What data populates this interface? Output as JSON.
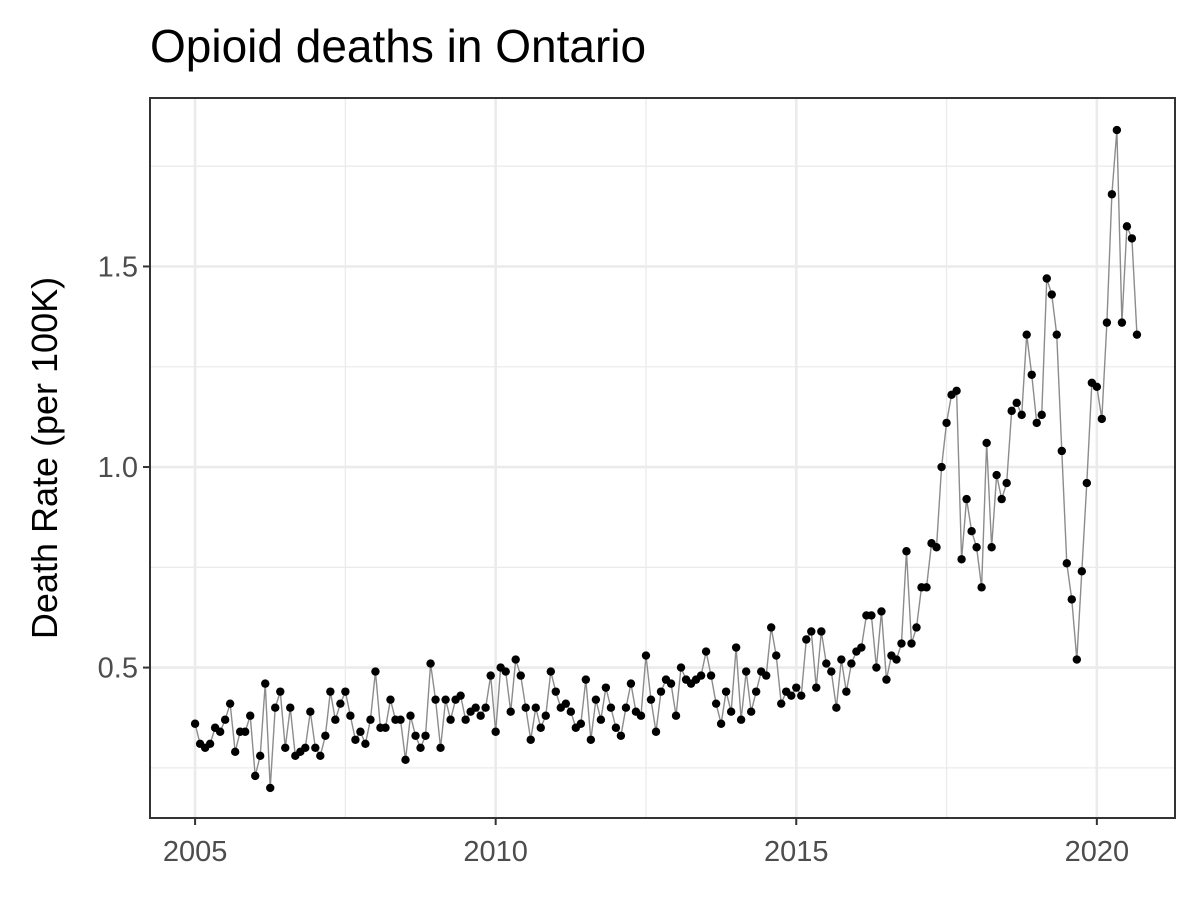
{
  "chart_data": {
    "type": "line",
    "title": "Opioid deaths in Ontario",
    "xlabel": "",
    "ylabel": "Death Rate (per 100K)",
    "xlim": [
      2004.25,
      2021.3
    ],
    "ylim": [
      0.125,
      1.92
    ],
    "x_ticks": [
      2005,
      2010,
      2015,
      2020
    ],
    "x_tick_labels": [
      "2005",
      "2010",
      "2015",
      "2020"
    ],
    "y_ticks": [
      0.5,
      1.0,
      1.5
    ],
    "y_tick_labels": [
      "0.5",
      "1.0",
      "1.5"
    ],
    "grid": true,
    "legend": "none",
    "colors": {
      "line": "#8c8c8c",
      "points": "#000000",
      "grid": "#ebebeb",
      "border": "#333333"
    },
    "series": [
      {
        "x": [
          2005.0,
          2005.083,
          2005.167,
          2005.25,
          2005.333,
          2005.417,
          2005.5,
          2005.583,
          2005.667,
          2005.75,
          2005.833,
          2005.917,
          2006.0,
          2006.083,
          2006.167,
          2006.25,
          2006.333,
          2006.417,
          2006.5,
          2006.583,
          2006.667,
          2006.75,
          2006.833,
          2006.917,
          2007.0,
          2007.083,
          2007.167,
          2007.25,
          2007.333,
          2007.417,
          2007.5,
          2007.583,
          2007.667,
          2007.75,
          2007.833,
          2007.917,
          2008.0,
          2008.083,
          2008.167,
          2008.25,
          2008.333,
          2008.417,
          2008.5,
          2008.583,
          2008.667,
          2008.75,
          2008.833,
          2008.917,
          2009.0,
          2009.083,
          2009.167,
          2009.25,
          2009.333,
          2009.417,
          2009.5,
          2009.583,
          2009.667,
          2009.75,
          2009.833,
          2009.917,
          2010.0,
          2010.083,
          2010.167,
          2010.25,
          2010.333,
          2010.417,
          2010.5,
          2010.583,
          2010.667,
          2010.75,
          2010.833,
          2010.917,
          2011.0,
          2011.083,
          2011.167,
          2011.25,
          2011.333,
          2011.417,
          2011.5,
          2011.583,
          2011.667,
          2011.75,
          2011.833,
          2011.917,
          2012.0,
          2012.083,
          2012.167,
          2012.25,
          2012.333,
          2012.417,
          2012.5,
          2012.583,
          2012.667,
          2012.75,
          2012.833,
          2012.917,
          2013.0,
          2013.083,
          2013.167,
          2013.25,
          2013.333,
          2013.417,
          2013.5,
          2013.583,
          2013.667,
          2013.75,
          2013.833,
          2013.917,
          2014.0,
          2014.083,
          2014.167,
          2014.25,
          2014.333,
          2014.417,
          2014.5,
          2014.583,
          2014.667,
          2014.75,
          2014.833,
          2014.917,
          2015.0,
          2015.083,
          2015.167,
          2015.25,
          2015.333,
          2015.417,
          2015.5,
          2015.583,
          2015.667,
          2015.75,
          2015.833,
          2015.917,
          2016.0,
          2016.083,
          2016.167,
          2016.25,
          2016.333,
          2016.417,
          2016.5,
          2016.583,
          2016.667,
          2016.75,
          2016.833,
          2016.917,
          2017.0,
          2017.083,
          2017.167,
          2017.25,
          2017.333,
          2017.417,
          2017.5,
          2017.583,
          2017.667,
          2017.75,
          2017.833,
          2017.917,
          2018.0,
          2018.083,
          2018.167,
          2018.25,
          2018.333,
          2018.417,
          2018.5,
          2018.583,
          2018.667,
          2018.75,
          2018.833,
          2018.917,
          2019.0,
          2019.083,
          2019.167,
          2019.25,
          2019.333,
          2019.417,
          2019.5,
          2019.583,
          2019.667,
          2019.75,
          2019.833,
          2019.917,
          2020.0,
          2020.083,
          2020.167,
          2020.25,
          2020.333,
          2020.417,
          2020.5,
          2020.583,
          2020.667
        ],
        "y": [
          0.36,
          0.31,
          0.3,
          0.31,
          0.35,
          0.34,
          0.37,
          0.41,
          0.29,
          0.34,
          0.34,
          0.38,
          0.23,
          0.28,
          0.46,
          0.2,
          0.4,
          0.44,
          0.3,
          0.4,
          0.28,
          0.29,
          0.3,
          0.39,
          0.3,
          0.28,
          0.33,
          0.44,
          0.37,
          0.41,
          0.44,
          0.38,
          0.32,
          0.34,
          0.31,
          0.37,
          0.49,
          0.35,
          0.35,
          0.42,
          0.37,
          0.37,
          0.27,
          0.38,
          0.33,
          0.3,
          0.33,
          0.51,
          0.42,
          0.3,
          0.42,
          0.37,
          0.42,
          0.43,
          0.37,
          0.39,
          0.4,
          0.38,
          0.4,
          0.48,
          0.34,
          0.5,
          0.49,
          0.39,
          0.52,
          0.48,
          0.4,
          0.32,
          0.4,
          0.35,
          0.38,
          0.49,
          0.44,
          0.4,
          0.41,
          0.39,
          0.35,
          0.36,
          0.47,
          0.32,
          0.42,
          0.37,
          0.45,
          0.4,
          0.35,
          0.33,
          0.4,
          0.46,
          0.39,
          0.38,
          0.53,
          0.42,
          0.34,
          0.44,
          0.47,
          0.46,
          0.38,
          0.5,
          0.47,
          0.46,
          0.47,
          0.48,
          0.54,
          0.48,
          0.41,
          0.36,
          0.44,
          0.39,
          0.55,
          0.37,
          0.49,
          0.39,
          0.44,
          0.49,
          0.48,
          0.6,
          0.53,
          0.41,
          0.44,
          0.43,
          0.45,
          0.43,
          0.57,
          0.59,
          0.45,
          0.59,
          0.51,
          0.49,
          0.4,
          0.52,
          0.44,
          0.51,
          0.54,
          0.55,
          0.63,
          0.63,
          0.5,
          0.64,
          0.47,
          0.53,
          0.52,
          0.56,
          0.79,
          0.56,
          0.6,
          0.7,
          0.7,
          0.81,
          0.8,
          1.0,
          1.11,
          1.18,
          1.19,
          0.77,
          0.92,
          0.84,
          0.8,
          0.7,
          1.06,
          0.8,
          0.98,
          0.92,
          0.96,
          1.14,
          1.16,
          1.13,
          1.33,
          1.23,
          1.11,
          1.13,
          1.47,
          1.43,
          1.33,
          1.04,
          0.76,
          0.67,
          0.52,
          0.74,
          0.96,
          1.21,
          1.2,
          1.12,
          1.36,
          1.68,
          1.84,
          1.36,
          1.6,
          1.57,
          1.33
        ]
      }
    ]
  }
}
